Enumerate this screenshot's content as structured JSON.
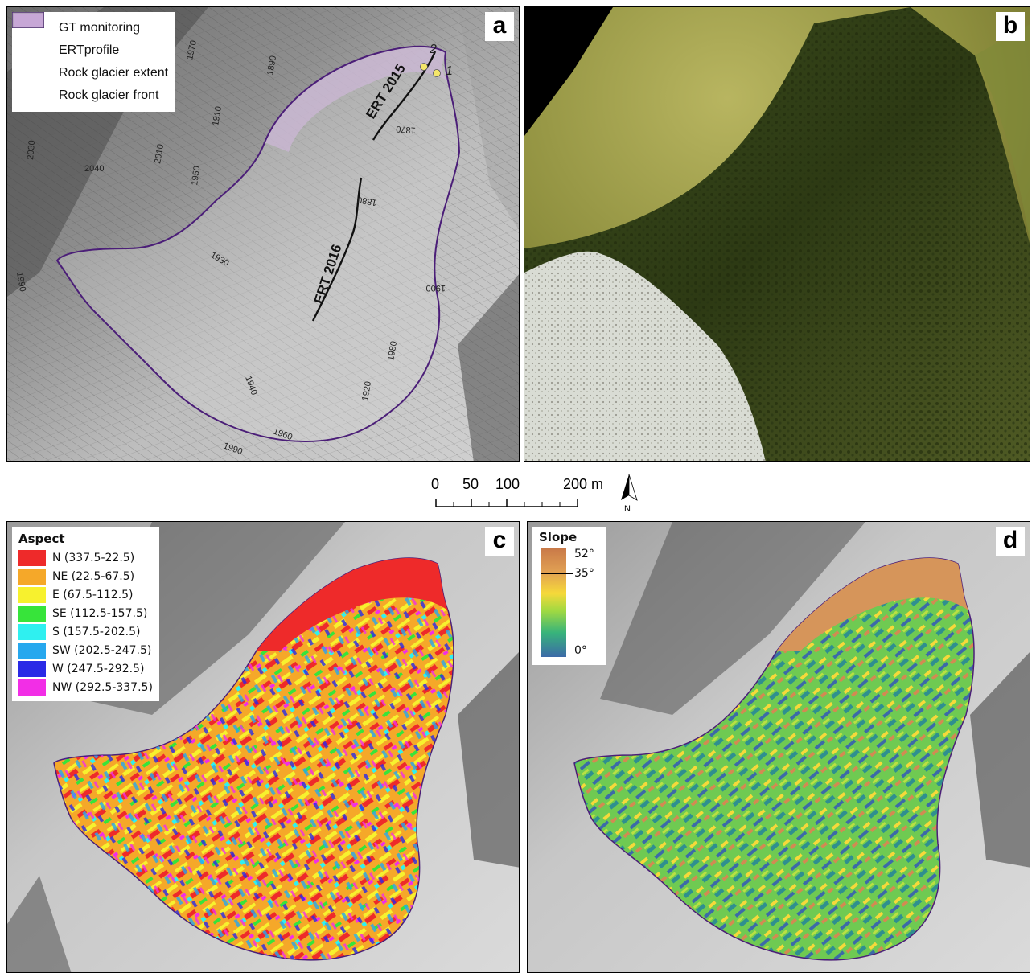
{
  "panels": {
    "a": {
      "letter": "a",
      "legend": {
        "gt_monitoring": "GT monitoring",
        "ert_profile": "ERTprofile",
        "extent": "Rock glacier extent",
        "front": "Rock glacier front"
      },
      "contour_labels": [
        "1970",
        "1890",
        "1910",
        "1930",
        "2010",
        "2030",
        "1950",
        "2040",
        "1990",
        "1990",
        "1930",
        "1900",
        "1870",
        "1880",
        "1940",
        "1920",
        "1980",
        "1960"
      ],
      "ert_labels": [
        "ERT 2015",
        "ERT 2016"
      ],
      "gt_points": [
        "1",
        "2"
      ]
    },
    "b": {
      "letter": "b"
    },
    "c": {
      "letter": "c",
      "legend_title": "Aspect",
      "classes": [
        {
          "label": "N (337.5-22.5)",
          "color": "#ee2a2a"
        },
        {
          "label": "NE (22.5-67.5)",
          "color": "#f5a829"
        },
        {
          "label": "E (67.5-112.5)",
          "color": "#f7f12e"
        },
        {
          "label": "SE (112.5-157.5)",
          "color": "#37e43a"
        },
        {
          "label": "S (157.5-202.5)",
          "color": "#2ff0f0"
        },
        {
          "label": "SW (202.5-247.5)",
          "color": "#27a8ee"
        },
        {
          "label": "W (247.5-292.5)",
          "color": "#2a2ae6"
        },
        {
          "label": "NW (292.5-337.5)",
          "color": "#f22ee6"
        }
      ]
    },
    "d": {
      "letter": "d",
      "legend_title": "Slope",
      "max_label": "52°",
      "mid_label": "35°",
      "min_label": "0°"
    }
  },
  "scalebar": {
    "labels": [
      "0",
      "50",
      "100",
      "200 m"
    ],
    "north": "N"
  },
  "colors": {
    "outline": "#4b1e78",
    "front_fill": "#c7a7d6"
  }
}
